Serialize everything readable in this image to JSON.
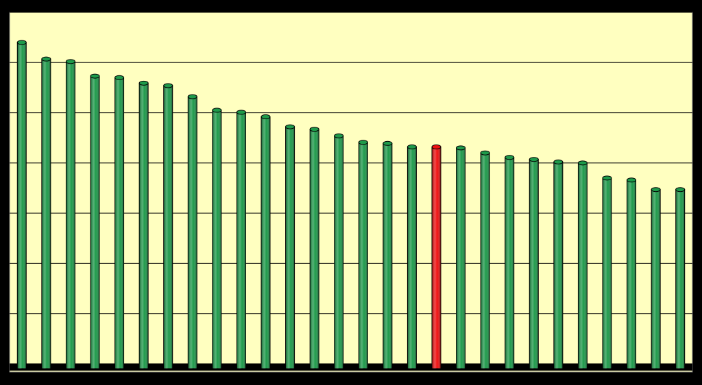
{
  "chart_data": {
    "type": "bar",
    "categories": [
      null,
      null,
      null,
      null,
      null,
      null,
      null,
      null,
      null,
      null,
      null,
      null,
      null,
      null,
      null,
      null,
      null,
      null,
      null,
      null,
      null,
      null,
      null,
      null,
      null,
      null,
      null,
      null
    ],
    "values": [
      6.4,
      6.07,
      6.02,
      5.73,
      5.7,
      5.59,
      5.54,
      5.32,
      5.05,
      5.01,
      4.92,
      4.72,
      4.67,
      4.54,
      4.41,
      4.39,
      4.32,
      4.32,
      4.3,
      4.2,
      4.11,
      4.07,
      4.02,
      4.0,
      3.7,
      3.66,
      3.47,
      3.47
    ],
    "colors": [
      "#1e9a4a",
      "#1e9a4a",
      "#1e9a4a",
      "#1e9a4a",
      "#1e9a4a",
      "#1e9a4a",
      "#1e9a4a",
      "#1e9a4a",
      "#1e9a4a",
      "#1e9a4a",
      "#1e9a4a",
      "#1e9a4a",
      "#1e9a4a",
      "#1e9a4a",
      "#1e9a4a",
      "#1e9a4a",
      "#1e9a4a",
      "#ee1111",
      "#1e9a4a",
      "#1e9a4a",
      "#1e9a4a",
      "#1e9a4a",
      "#1e9a4a",
      "#1e9a4a",
      "#1e9a4a",
      "#1e9a4a",
      "#1e9a4a",
      "#1e9a4a"
    ],
    "ylim": [
      0,
      7
    ],
    "yticks": [
      0,
      1,
      2,
      3,
      4,
      5,
      6,
      7
    ],
    "grid": true
  }
}
